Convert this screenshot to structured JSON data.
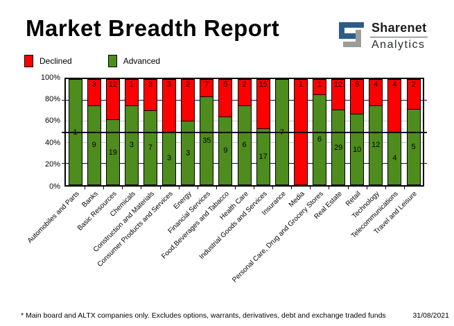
{
  "header": {
    "title": "Market Breadth Report"
  },
  "logo": {
    "brand": "Sharenet",
    "sub": "Analytics",
    "blue": "#2e5c87",
    "gray": "#9c9c9c"
  },
  "legend": [
    {
      "label": "Declined",
      "color": "#ff0000"
    },
    {
      "label": "Advanced",
      "color": "#4e8c1e"
    }
  ],
  "chart_data": {
    "type": "bar",
    "stacked": true,
    "stack_mode": "percent",
    "title": "Market Breadth Report",
    "categories": [
      "Automobiles and Parts",
      "Banks",
      "Basic Resources",
      "Chemicals",
      "Construction and Materials",
      "Consumer Products and Services",
      "Energy",
      "Financial Services",
      "Food,Beverages and Tabacco",
      "Health Care",
      "Industrial Goods and Services",
      "Insurance",
      "Media",
      "Personal Care, Drug and Grocery Stores",
      "Real Estate",
      "Retail",
      "Technology",
      "Telecommunications",
      "Travel and Leisure"
    ],
    "series": [
      {
        "name": "Declined",
        "color": "#ff0000",
        "values": [
          0,
          3,
          12,
          1,
          3,
          3,
          2,
          7,
          5,
          2,
          15,
          0,
          1,
          1,
          12,
          5,
          4,
          4,
          2
        ]
      },
      {
        "name": "Advanced",
        "color": "#4e8c1e",
        "values": [
          1,
          9,
          19,
          3,
          7,
          3,
          3,
          35,
          9,
          6,
          17,
          7,
          0,
          6,
          29,
          10,
          12,
          4,
          5
        ]
      }
    ],
    "y_ticks": [
      100,
      80,
      60,
      40,
      20,
      0
    ],
    "y_tick_suffix": "%",
    "ylim": [
      0,
      100
    ],
    "reference_line": 50,
    "grid_major_color": "#000080",
    "grid_minor_color": "#c6c6c6",
    "legend_position": "top-left"
  },
  "footer": {
    "note": "* Main board and ALTX companies only. Excludes options, warrants, derivatives, debt and exchange traded funds",
    "date": "31/08/2021"
  }
}
